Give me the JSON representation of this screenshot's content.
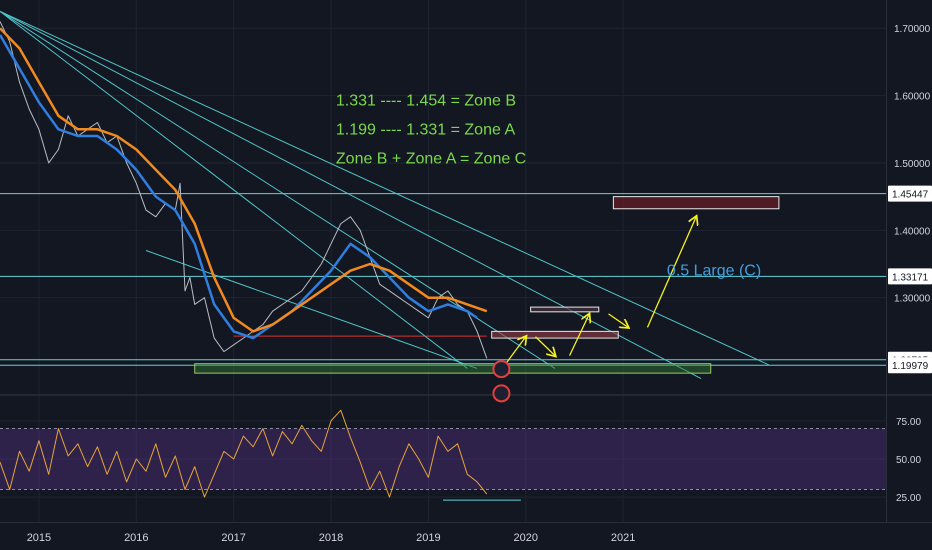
{
  "chart_data": [
    {
      "type": "line",
      "title": "",
      "xlabel": "",
      "ylabel": "",
      "x_ticks": [
        "2015",
        "2016",
        "2017",
        "2018",
        "2019",
        "2020",
        "2021"
      ],
      "y_ticks": [
        "1.70000",
        "1.60000",
        "1.50000",
        "1.40000",
        "1.30000"
      ],
      "ylim": [
        1.16,
        1.73
      ],
      "x_range": [
        2014.6,
        2023.7
      ],
      "grid": true,
      "price_tags": [
        {
          "label": "1.45447",
          "value": 1.45447,
          "color": "#ffffff",
          "text_color": "#131722"
        },
        {
          "label": "1.33171",
          "value": 1.33171,
          "color": "#ffffff",
          "text_color": "#131722"
        },
        {
          "label": "1.20795",
          "value": 1.20795,
          "color": "#ffffff",
          "text_color": "#131722"
        },
        {
          "label": "1.19979",
          "value": 1.19979,
          "color": "#ffffff",
          "text_color": "#131722"
        }
      ],
      "series": [
        {
          "kind": "price",
          "color": "#b8bcc4",
          "x": [
            2014.6,
            2014.7,
            2014.8,
            2014.9,
            2015.0,
            2015.1,
            2015.2,
            2015.3,
            2015.4,
            2015.5,
            2015.6,
            2015.7,
            2015.8,
            2015.9,
            2016.0,
            2016.1,
            2016.2,
            2016.3,
            2016.4,
            2016.45,
            2016.5,
            2016.55,
            2016.6,
            2016.7,
            2016.8,
            2016.9,
            2017.0,
            2017.1,
            2017.2,
            2017.3,
            2017.4,
            2017.5,
            2017.6,
            2017.7,
            2017.8,
            2017.9,
            2018.0,
            2018.1,
            2018.2,
            2018.3,
            2018.4,
            2018.5,
            2018.6,
            2018.7,
            2018.8,
            2018.9,
            2019.0,
            2019.1,
            2019.2,
            2019.3,
            2019.4,
            2019.5,
            2019.6
          ],
          "values": [
            1.71,
            1.68,
            1.62,
            1.58,
            1.55,
            1.5,
            1.52,
            1.57,
            1.54,
            1.55,
            1.56,
            1.53,
            1.54,
            1.5,
            1.47,
            1.43,
            1.42,
            1.44,
            1.43,
            1.47,
            1.31,
            1.33,
            1.29,
            1.3,
            1.24,
            1.22,
            1.23,
            1.24,
            1.25,
            1.26,
            1.28,
            1.29,
            1.3,
            1.31,
            1.33,
            1.35,
            1.38,
            1.41,
            1.42,
            1.4,
            1.36,
            1.32,
            1.31,
            1.3,
            1.29,
            1.28,
            1.27,
            1.3,
            1.31,
            1.29,
            1.28,
            1.25,
            1.21
          ]
        },
        {
          "kind": "ema_fast",
          "color": "#2f7ee0",
          "x": [
            2014.6,
            2014.8,
            2015.0,
            2015.2,
            2015.4,
            2015.6,
            2015.8,
            2016.0,
            2016.2,
            2016.4,
            2016.6,
            2016.8,
            2017.0,
            2017.2,
            2017.4,
            2017.6,
            2017.8,
            2018.0,
            2018.2,
            2018.4,
            2018.6,
            2018.8,
            2019.0,
            2019.2,
            2019.4,
            2019.5
          ],
          "values": [
            1.69,
            1.64,
            1.59,
            1.55,
            1.54,
            1.54,
            1.52,
            1.49,
            1.45,
            1.43,
            1.38,
            1.29,
            1.25,
            1.24,
            1.26,
            1.28,
            1.31,
            1.34,
            1.38,
            1.36,
            1.33,
            1.3,
            1.28,
            1.29,
            1.28,
            1.27
          ]
        },
        {
          "kind": "ema_slow",
          "color": "#f28a1d",
          "x": [
            2014.6,
            2014.8,
            2015.0,
            2015.2,
            2015.4,
            2015.6,
            2015.8,
            2016.0,
            2016.2,
            2016.4,
            2016.6,
            2016.8,
            2017.0,
            2017.2,
            2017.4,
            2017.6,
            2017.8,
            2018.0,
            2018.2,
            2018.4,
            2018.6,
            2018.8,
            2019.0,
            2019.2,
            2019.4,
            2019.6
          ],
          "values": [
            1.7,
            1.67,
            1.62,
            1.57,
            1.55,
            1.55,
            1.54,
            1.52,
            1.49,
            1.46,
            1.41,
            1.33,
            1.27,
            1.25,
            1.26,
            1.28,
            1.3,
            1.32,
            1.34,
            1.35,
            1.34,
            1.32,
            1.3,
            1.3,
            1.29,
            1.28
          ]
        }
      ],
      "horizontal_lines": [
        {
          "value": 1.45447,
          "color": "#5fd3d8"
        },
        {
          "value": 1.33171,
          "color": "#5fd3d8"
        },
        {
          "value": 1.20795,
          "color": "#5fd3d8"
        },
        {
          "value": 1.19979,
          "color": "#5fd3d8"
        },
        {
          "value": 1.243,
          "color": "#e03030",
          "from": 2017.0,
          "to": 2019.6
        }
      ],
      "trendlines": [
        {
          "from": [
            2014.6,
            1.725
          ],
          "to": [
            2022.5,
            1.2
          ]
        },
        {
          "from": [
            2014.6,
            1.725
          ],
          "to": [
            2021.8,
            1.18
          ]
        },
        {
          "from": [
            2014.6,
            1.725
          ],
          "to": [
            2020.3,
            1.195
          ]
        },
        {
          "from": [
            2014.6,
            1.725
          ],
          "to": [
            2019.4,
            1.195
          ]
        },
        {
          "from": [
            2016.1,
            1.37
          ],
          "to": [
            2019.5,
            1.195
          ]
        }
      ],
      "zones": [
        {
          "from": 2016.6,
          "to": 2021.9,
          "low": 1.188,
          "high": 1.202,
          "fill": "rgba(46,125,50,0.45)",
          "stroke": "#9ccc65"
        },
        {
          "from": 2019.65,
          "to": 2020.95,
          "low": 1.24,
          "high": 1.25,
          "fill": "rgba(150,60,70,0.6)",
          "stroke": "#e8e8e8"
        },
        {
          "from": 2020.9,
          "to": 2022.6,
          "low": 1.432,
          "high": 1.45,
          "fill": "rgba(120,30,40,0.6)",
          "stroke": "#e8e8e8"
        },
        {
          "from": 2020.05,
          "to": 2020.75,
          "low": 1.279,
          "high": 1.286,
          "fill": "rgba(70,50,60,0.7)",
          "stroke": "#e8e8e8"
        }
      ],
      "arrows": [
        {
          "from": [
            2019.8,
            1.203
          ],
          "to": [
            2020.0,
            1.242
          ]
        },
        {
          "from": [
            2020.1,
            1.242
          ],
          "to": [
            2020.3,
            1.214
          ]
        },
        {
          "from": [
            2020.45,
            1.214
          ],
          "to": [
            2020.65,
            1.275
          ]
        },
        {
          "from": [
            2020.85,
            1.276
          ],
          "to": [
            2021.05,
            1.256
          ]
        },
        {
          "from": [
            2021.25,
            1.256
          ],
          "to": [
            2021.75,
            1.42
          ]
        }
      ],
      "annotations": [
        {
          "text": "1.331 ---- 1.454 = Zone B",
          "x": 2018.05,
          "y": 1.585,
          "color": "#7bd94b",
          "size": 16
        },
        {
          "text": "1.199 ---- 1.331 = Zone A",
          "x": 2018.05,
          "y": 1.542,
          "color": "#7bd94b",
          "size": 16
        },
        {
          "text": "Zone B + Zone A = Zone C",
          "x": 2018.05,
          "y": 1.499,
          "color": "#7bd94b",
          "size": 16
        },
        {
          "text": "0.5 Large (C)",
          "x": 2021.45,
          "y": 1.333,
          "color": "#3f9fe0",
          "size": 16
        }
      ]
    },
    {
      "type": "line",
      "title": "",
      "xlabel": "",
      "ylabel": "",
      "y_ticks": [
        "75.00",
        "50.00",
        "25.00"
      ],
      "ylim": [
        10,
        90
      ],
      "x_range": [
        2014.6,
        2023.7
      ],
      "band": {
        "low": 30,
        "high": 70,
        "fill": "rgba(110,60,170,0.30)"
      },
      "band_lines": [
        70,
        30
      ],
      "series": [
        {
          "kind": "oscillator",
          "color": "#e8a33a",
          "x": [
            2014.6,
            2014.7,
            2014.8,
            2014.9,
            2015.0,
            2015.1,
            2015.2,
            2015.3,
            2015.4,
            2015.5,
            2015.6,
            2015.7,
            2015.8,
            2015.9,
            2016.0,
            2016.1,
            2016.2,
            2016.3,
            2016.4,
            2016.5,
            2016.6,
            2016.7,
            2016.8,
            2016.9,
            2017.0,
            2017.1,
            2017.2,
            2017.3,
            2017.4,
            2017.5,
            2017.6,
            2017.7,
            2017.8,
            2017.9,
            2018.0,
            2018.1,
            2018.2,
            2018.3,
            2018.4,
            2018.5,
            2018.6,
            2018.7,
            2018.8,
            2018.9,
            2019.0,
            2019.1,
            2019.2,
            2019.3,
            2019.4,
            2019.5,
            2019.6
          ],
          "values": [
            48,
            30,
            55,
            42,
            62,
            40,
            70,
            52,
            60,
            45,
            58,
            40,
            55,
            35,
            50,
            42,
            60,
            38,
            52,
            30,
            45,
            25,
            40,
            55,
            50,
            65,
            58,
            70,
            52,
            68,
            60,
            72,
            62,
            55,
            75,
            82,
            64,
            48,
            30,
            42,
            25,
            45,
            60,
            50,
            38,
            65,
            55,
            60,
            40,
            35,
            27
          ]
        }
      ],
      "horizontal_lines": [
        {
          "value": 23,
          "color": "#5fd3d8",
          "from": 2019.15,
          "to": 2019.95
        }
      ]
    }
  ]
}
